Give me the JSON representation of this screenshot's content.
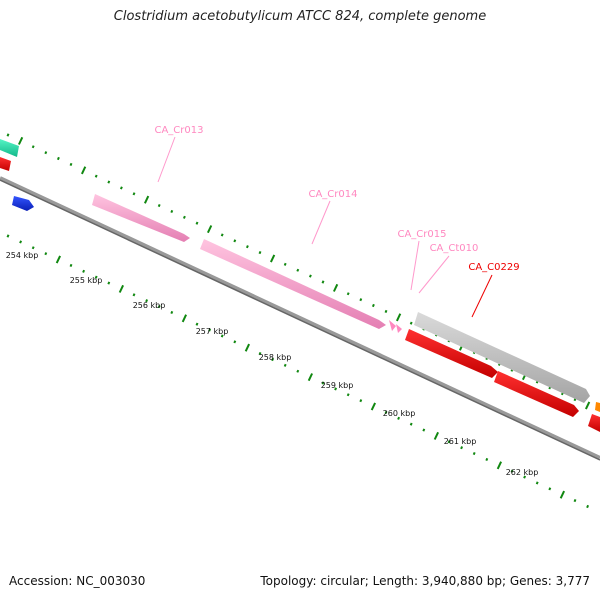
{
  "header": {
    "title": "Clostridium acetobutylicum ATCC 824, complete genome"
  },
  "footer": {
    "accession": "Accession: NC_003030",
    "summary": "Topology: circular; Length: 3,940,880 bp; Genes: 3,777"
  },
  "ruler": {
    "ticks": [
      {
        "label": "254 kbp"
      },
      {
        "label": "255 kbp"
      },
      {
        "label": "256 kbp"
      },
      {
        "label": "257 kbp"
      },
      {
        "label": "258 kbp"
      },
      {
        "label": "259 kbp"
      },
      {
        "label": "260 kbp"
      },
      {
        "label": "261 kbp"
      },
      {
        "label": "262 kbp"
      }
    ]
  },
  "features": [
    {
      "name": "CA_Cr013",
      "type": "rRNA",
      "color": "#ff99cc"
    },
    {
      "name": "CA_Cr014",
      "type": "rRNA",
      "color": "#ff99cc"
    },
    {
      "name": "CA_Cr015",
      "type": "rRNA",
      "color": "#ff99cc"
    },
    {
      "name": "CA_Ct010",
      "type": "tRNA",
      "color": "#ff99cc"
    },
    {
      "name": "CA_C0229",
      "type": "CDS",
      "color": "#ee0000"
    }
  ],
  "colors": {
    "backbone": "#777777",
    "tick": "#118811",
    "rrna": "#ff99cc",
    "cds": "#ee0000",
    "pseudo": "#bbbbbb",
    "teal": "#22ddaa",
    "blue": "#1133dd",
    "orange": "#ff8800"
  }
}
